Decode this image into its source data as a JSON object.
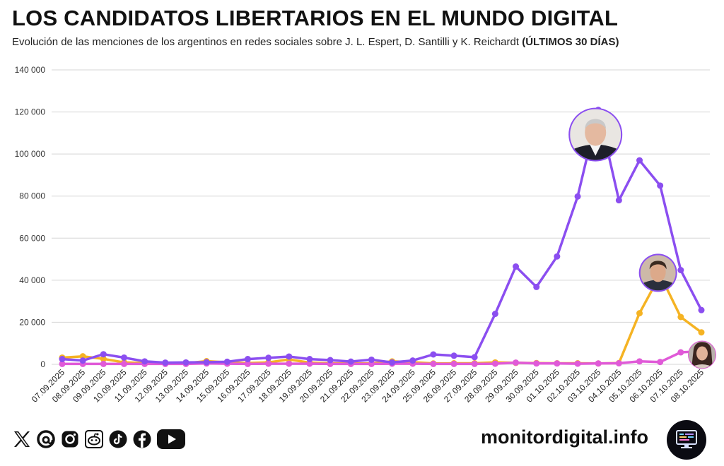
{
  "header": {
    "title": "LOS CANDIDATOS LIBERTARIOS EN EL MUNDO DIGITAL",
    "subtitle": "Evolución de las menciones de los argentinos en redes sociales sobre J. L. Espert, D. Santilli y K. Reichardt",
    "subtitle_bold": "(ÚLTIMOS 30 DÍAS)"
  },
  "chart_data": {
    "type": "line",
    "title": "LOS CANDIDATOS LIBERTARIOS EN EL MUNDO DIGITAL",
    "xlabel": "",
    "ylabel": "",
    "ylim": [
      0,
      140000
    ],
    "yticks": [
      0,
      20000,
      40000,
      60000,
      80000,
      100000,
      120000,
      140000
    ],
    "ytick_labels": [
      "0",
      "20 000",
      "40 000",
      "60 000",
      "80 000",
      "100 000",
      "120 000",
      "140 000"
    ],
    "grid": true,
    "categories": [
      "07.09.2025",
      "08.09.2025",
      "09.09.2025",
      "10.09.2025",
      "11.09.2025",
      "12.09.2025",
      "13.09.2025",
      "14.09.2025",
      "15.09.2025",
      "16.09.2025",
      "17.09.2025",
      "18.09.2025",
      "19.09.2025",
      "20.09.2025",
      "21.09.2025",
      "22.09.2025",
      "23.09.2025",
      "24.09.2025",
      "25.09.2025",
      "26.09.2025",
      "27.09.2025",
      "28.09.2025",
      "29.09.2025",
      "30.09.2025",
      "01.10.2025",
      "02.10.2025",
      "03.10.2025",
      "04.10.2025",
      "05.10.2025",
      "06.10.2025",
      "07.10.2025",
      "08.10.2025"
    ],
    "series": [
      {
        "name": "J. L. Espert",
        "color": "#8b4ef0",
        "avatar": "espert",
        "values": [
          2500,
          1800,
          4800,
          3200,
          1400,
          800,
          900,
          1000,
          1200,
          2500,
          3100,
          3700,
          2500,
          2000,
          1300,
          2200,
          900,
          1800,
          4700,
          4100,
          3400,
          24000,
          46500,
          36800,
          51300,
          79800,
          121000,
          78000,
          97000,
          85000,
          44800,
          25800
        ]
      },
      {
        "name": "D. Santilli",
        "color": "#f5b323",
        "avatar": "santilli",
        "values": [
          3200,
          3800,
          2600,
          900,
          600,
          400,
          500,
          1500,
          900,
          600,
          900,
          2300,
          800,
          500,
          400,
          400,
          1400,
          1000,
          400,
          500,
          500,
          900,
          700,
          600,
          500,
          500,
          400,
          600,
          24300,
          42500,
          22500,
          15200
        ]
      },
      {
        "name": "K. Reichardt",
        "color": "#e05ad8",
        "avatar": "reichardt",
        "values": [
          200,
          200,
          200,
          200,
          200,
          200,
          200,
          400,
          300,
          200,
          300,
          300,
          300,
          200,
          200,
          200,
          300,
          300,
          200,
          200,
          200,
          300,
          800,
          400,
          400,
          300,
          400,
          500,
          1400,
          1100,
          5700,
          6200
        ]
      }
    ]
  },
  "footer": {
    "site": "monitordigital.info",
    "icons": [
      "x-icon",
      "threads-icon",
      "instagram-icon",
      "reddit-icon",
      "tiktok-icon",
      "facebook-icon",
      "youtube-icon"
    ]
  }
}
